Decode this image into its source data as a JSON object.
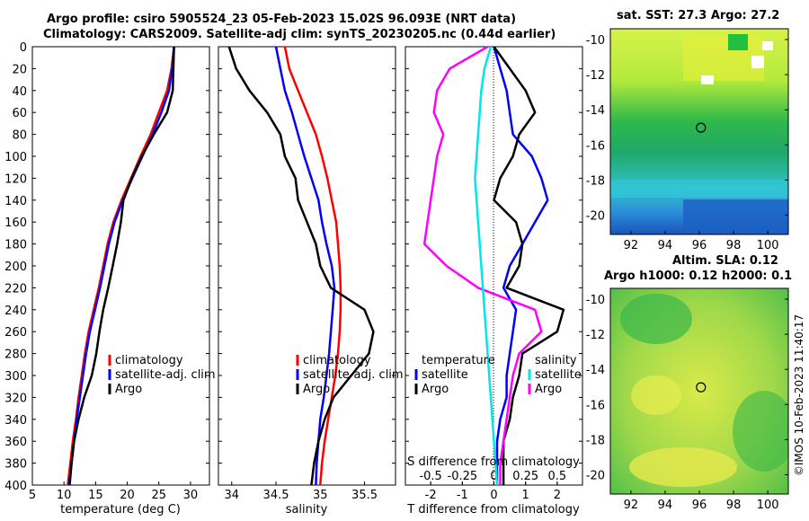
{
  "header": {
    "line1": "Argo profile: csiro 5905524_23 05-Feb-2023 15.02S 96.093E (NRT data)",
    "line2": "Climatology: CARS2009. Satellite-adj clim: synTS_20230205.nc (0.44d earlier)"
  },
  "maps": {
    "sst_title": "sat. SST: 27.3 Argo: 27.2",
    "sla_title1": "Altim. SLA: 0.12",
    "sla_title2": "Argo h1000: 0.12 h2000: 0.1",
    "lon_ticks": [
      92,
      94,
      96,
      98,
      100
    ],
    "lat_ticks": [
      -10,
      -12,
      -14,
      -16,
      -18,
      -20
    ],
    "float_lon": 96.093,
    "float_lat": -15.02
  },
  "credit": "©IMOS 10-Feb-2023 11:40:17",
  "colors": {
    "climatology": "#ff0000",
    "satellite": "#0000ff",
    "argo": "#000000",
    "salinity": "#ff00ff",
    "temperature": "#00e5ee"
  },
  "chart_data": [
    {
      "type": "line",
      "xlabel": "temperature (deg C)",
      "ylabel": "depth",
      "xlim": [
        5,
        33
      ],
      "ylim": [
        400,
        0
      ],
      "xticks": [
        5,
        10,
        15,
        20,
        25,
        30
      ],
      "yticks": [
        0,
        20,
        40,
        60,
        80,
        100,
        120,
        140,
        160,
        180,
        200,
        220,
        240,
        260,
        280,
        300,
        320,
        340,
        360,
        380,
        400
      ],
      "legend": [
        "climatology",
        "satellite-adj. clim",
        "Argo"
      ],
      "series": [
        {
          "name": "climatology",
          "depth": [
            0,
            20,
            40,
            60,
            80,
            100,
            120,
            140,
            160,
            180,
            200,
            220,
            240,
            260,
            280,
            300,
            320,
            340,
            360,
            380,
            400
          ],
          "values": [
            27.4,
            27.0,
            26.3,
            25.0,
            23.7,
            22.1,
            20.6,
            19.1,
            17.8,
            16.9,
            16.2,
            15.5,
            14.7,
            13.9,
            13.3,
            12.8,
            12.3,
            11.9,
            11.4,
            11.0,
            10.6
          ]
        },
        {
          "name": "satellite-adj. clim",
          "depth": [
            0,
            20,
            40,
            60,
            80,
            100,
            120,
            140,
            160,
            180,
            200,
            220,
            240,
            260,
            280,
            300,
            320,
            340,
            360,
            380,
            400
          ],
          "values": [
            27.4,
            27.1,
            26.6,
            25.4,
            24.0,
            22.4,
            20.8,
            19.3,
            18.0,
            17.1,
            16.4,
            15.7,
            14.9,
            14.1,
            13.5,
            13.0,
            12.5,
            12.0,
            11.6,
            11.2,
            10.8
          ]
        },
        {
          "name": "Argo",
          "depth": [
            0,
            20,
            40,
            60,
            80,
            100,
            120,
            140,
            160,
            180,
            200,
            220,
            240,
            260,
            280,
            300,
            320,
            340,
            360,
            380,
            400
          ],
          "values": [
            27.4,
            27.3,
            27.2,
            26.3,
            24.2,
            22.3,
            20.7,
            19.4,
            19.0,
            18.4,
            17.7,
            17.0,
            16.2,
            15.6,
            15.1,
            14.4,
            13.2,
            12.3,
            11.6,
            11.2,
            10.9
          ]
        }
      ]
    },
    {
      "type": "line",
      "xlabel": "salinity",
      "ylabel": "depth",
      "xlim": [
        33.85,
        35.85
      ],
      "ylim": [
        400,
        0
      ],
      "xticks": [
        34,
        34.5,
        35,
        35.5
      ],
      "legend": [
        "climatology",
        "satellite-adj. clim",
        "Argo"
      ],
      "series": [
        {
          "name": "climatology",
          "depth": [
            0,
            20,
            40,
            60,
            80,
            100,
            120,
            140,
            160,
            180,
            200,
            220,
            240,
            260,
            280,
            300,
            320,
            340,
            360,
            380,
            400
          ],
          "values": [
            34.6,
            34.65,
            34.75,
            34.85,
            34.95,
            35.02,
            35.08,
            35.13,
            35.18,
            35.2,
            35.22,
            35.23,
            35.23,
            35.22,
            35.2,
            35.17,
            35.13,
            35.09,
            35.05,
            35.02,
            35.0
          ]
        },
        {
          "name": "satellite-adj. clim",
          "depth": [
            0,
            20,
            40,
            60,
            80,
            100,
            120,
            140,
            160,
            180,
            200,
            220,
            240,
            260,
            280,
            300,
            320,
            340,
            360,
            380,
            400
          ],
          "values": [
            34.5,
            34.55,
            34.6,
            34.68,
            34.75,
            34.82,
            34.9,
            34.98,
            35.02,
            35.07,
            35.13,
            35.16,
            35.14,
            35.12,
            35.1,
            35.07,
            35.04,
            35.0,
            34.98,
            34.96,
            34.95
          ]
        },
        {
          "name": "Argo",
          "depth": [
            0,
            20,
            40,
            60,
            80,
            100,
            120,
            140,
            160,
            180,
            200,
            220,
            240,
            260,
            280,
            300,
            320,
            340,
            360,
            380,
            400
          ],
          "values": [
            33.97,
            34.05,
            34.2,
            34.4,
            34.55,
            34.6,
            34.72,
            34.75,
            34.85,
            34.95,
            35.0,
            35.12,
            35.5,
            35.6,
            35.55,
            35.35,
            35.15,
            35.05,
            34.98,
            34.93,
            34.9
          ]
        }
      ]
    },
    {
      "type": "line",
      "xlabel": "T difference from climatology",
      "ylabel": "depth",
      "xlim": [
        -2.8,
        2.8
      ],
      "ylim": [
        400,
        0
      ],
      "xticks": [
        -2,
        -1,
        0,
        1,
        2
      ],
      "top_xlabel": "S difference from climatology",
      "top_xticks": [
        -0.5,
        -0.25,
        0,
        0.25,
        0.5
      ],
      "legend": [
        "temperature",
        "satellite",
        "Argo",
        "salinity",
        "satellite",
        "Argo"
      ],
      "series": [
        {
          "name": "temperature satellite",
          "depth": [
            0,
            20,
            40,
            60,
            80,
            100,
            120,
            140,
            160,
            180,
            200,
            220,
            240,
            260,
            280,
            300,
            320,
            340,
            360,
            380,
            400
          ],
          "values": [
            0.0,
            0.2,
            0.4,
            0.5,
            0.6,
            1.2,
            1.5,
            1.7,
            1.3,
            0.9,
            0.5,
            0.3,
            0.7,
            0.6,
            0.5,
            0.4,
            0.4,
            0.2,
            0.1,
            0.1,
            0.1
          ]
        },
        {
          "name": "temperature Argo",
          "depth": [
            0,
            20,
            40,
            60,
            80,
            100,
            120,
            140,
            160,
            180,
            200,
            220,
            240,
            260,
            280,
            300,
            320,
            340,
            360,
            380,
            400
          ],
          "values": [
            0.0,
            0.5,
            1.0,
            1.3,
            0.8,
            0.6,
            0.2,
            0.0,
            0.7,
            0.9,
            0.8,
            0.4,
            2.2,
            2.0,
            0.9,
            0.8,
            0.6,
            0.5,
            0.3,
            0.3,
            0.3
          ]
        },
        {
          "name": "salinity Argo",
          "depth": [
            0,
            20,
            40,
            60,
            80,
            100,
            120,
            140,
            160,
            180,
            200,
            220,
            240,
            260,
            280,
            300,
            320,
            340,
            360,
            380,
            400
          ],
          "values": [
            -0.2,
            -1.4,
            -1.8,
            -1.9,
            -1.6,
            -1.8,
            -1.9,
            -2.0,
            -2.1,
            -2.2,
            -1.5,
            -0.5,
            1.3,
            1.5,
            0.8,
            0.6,
            0.5,
            0.4,
            0.3,
            0.2,
            0.2
          ]
        },
        {
          "name": "salinity satellite",
          "depth": [
            0,
            20,
            40,
            60,
            80,
            100,
            120,
            140,
            160,
            180,
            200,
            220,
            240,
            260,
            280,
            300,
            320,
            340,
            360,
            380,
            400
          ],
          "values": [
            -0.1,
            -0.3,
            -0.4,
            -0.45,
            -0.5,
            -0.55,
            -0.6,
            -0.55,
            -0.5,
            -0.45,
            -0.4,
            -0.35,
            -0.3,
            -0.25,
            -0.2,
            -0.15,
            -0.1,
            -0.05,
            0.0,
            0.05,
            0.1
          ]
        }
      ]
    }
  ]
}
